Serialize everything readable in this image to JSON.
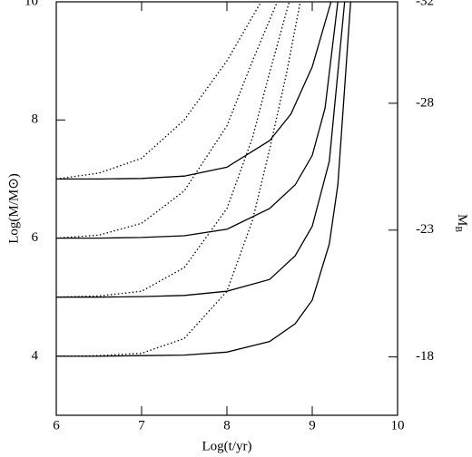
{
  "chart_data": {
    "type": "line",
    "xlabel": "Log(t/yr)",
    "ylabel": "Log(M/M⊙)",
    "y2label": {
      "main": "M",
      "sub": "B"
    },
    "xlim": [
      6,
      10
    ],
    "ylim": [
      3,
      10
    ],
    "xticks": [
      6,
      7,
      8,
      9,
      10
    ],
    "yticks": [
      4,
      6,
      8,
      10
    ],
    "y2lim": [
      -15.7,
      -32
    ],
    "y2ticks": [
      -32,
      -28,
      -23,
      -18
    ],
    "color": "#000000",
    "grid": false,
    "series": [
      {
        "style": "solid",
        "x": [
          6,
          6.5,
          7,
          7.5,
          8,
          8.5,
          8.75,
          9,
          9.1,
          9.22
        ],
        "values": [
          7,
          7,
          7.01,
          7.05,
          7.2,
          7.65,
          8.1,
          8.9,
          9.4,
          10
        ]
      },
      {
        "style": "solid",
        "x": [
          6,
          6.5,
          7,
          7.5,
          8,
          8.5,
          8.8,
          9,
          9.15,
          9.3
        ],
        "values": [
          6,
          6,
          6.01,
          6.04,
          6.15,
          6.5,
          6.9,
          7.4,
          8.2,
          10
        ]
      },
      {
        "style": "solid",
        "x": [
          6,
          6.5,
          7,
          7.5,
          8,
          8.5,
          8.8,
          9,
          9.2,
          9.38
        ],
        "values": [
          5,
          5,
          5.01,
          5.03,
          5.1,
          5.3,
          5.7,
          6.2,
          7.3,
          10
        ]
      },
      {
        "style": "solid",
        "x": [
          6,
          6.5,
          7,
          7.5,
          8,
          8.5,
          8.8,
          9,
          9.2,
          9.3,
          9.45
        ],
        "values": [
          4,
          4,
          4.01,
          4.02,
          4.07,
          4.25,
          4.55,
          4.95,
          5.9,
          6.9,
          10
        ]
      },
      {
        "style": "dotted",
        "x": [
          6,
          6.5,
          7,
          7.5,
          8,
          8.2,
          8.4
        ],
        "values": [
          7,
          7.1,
          7.35,
          8,
          9,
          9.5,
          10
        ]
      },
      {
        "style": "dotted",
        "x": [
          6,
          6.5,
          7,
          7.5,
          8,
          8.3,
          8.59
        ],
        "values": [
          6,
          6.05,
          6.25,
          6.8,
          7.9,
          9,
          10
        ]
      },
      {
        "style": "dotted",
        "x": [
          6,
          6.5,
          7,
          7.5,
          8,
          8.3,
          8.5,
          8.73
        ],
        "values": [
          5,
          5.02,
          5.1,
          5.5,
          6.5,
          7.7,
          8.8,
          10
        ]
      },
      {
        "style": "dotted",
        "x": [
          6,
          6.5,
          7,
          7.5,
          8,
          8.3,
          8.5,
          8.7,
          8.86
        ],
        "values": [
          4,
          4.01,
          4.05,
          4.3,
          5.1,
          6.3,
          7.5,
          8.8,
          10
        ]
      }
    ]
  }
}
